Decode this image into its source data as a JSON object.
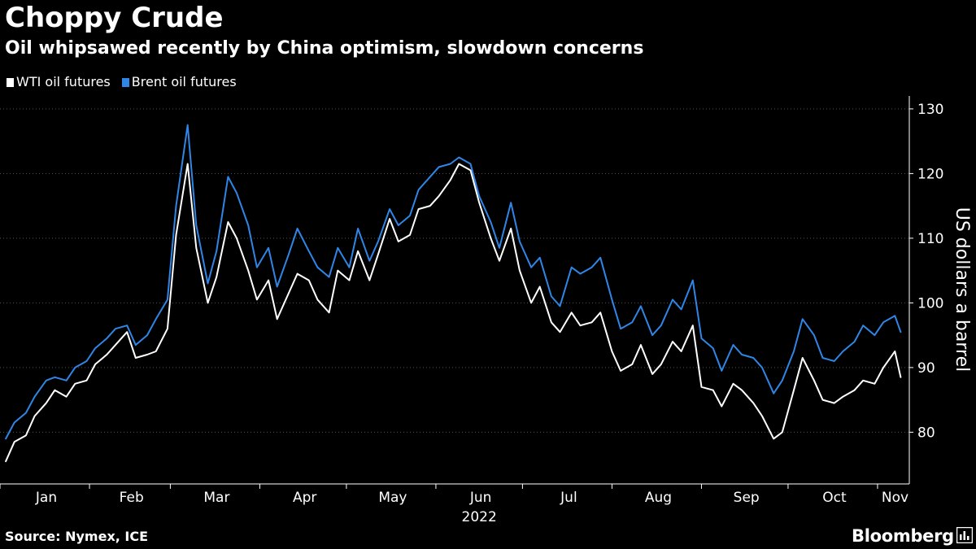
{
  "title": "Choppy Crude",
  "subtitle": "Oil whipsawed recently by China optimism, slowdown concerns",
  "legend": [
    {
      "label": "WTI oil futures",
      "color": "#ffffff"
    },
    {
      "label": "Brent oil futures",
      "color": "#2f86e6"
    }
  ],
  "source": "Source: Nymex, ICE",
  "brand": "Bloomberg",
  "brand_icon": "bloomberg-terminal-icon",
  "chart_data": {
    "type": "line",
    "xlabel": "2022",
    "ylabel": "US dollars a barrel",
    "ylim": [
      72,
      132
    ],
    "yticks": [
      80,
      90,
      100,
      110,
      120,
      130
    ],
    "xticks": [
      "Jan",
      "Feb",
      "Mar",
      "Apr",
      "May",
      "Jun",
      "Jul",
      "Aug",
      "Sep",
      "Oct",
      "Nov"
    ],
    "x": [
      "2022-01-03",
      "2022-01-06",
      "2022-01-10",
      "2022-01-13",
      "2022-01-17",
      "2022-01-20",
      "2022-01-24",
      "2022-01-27",
      "2022-01-31",
      "2022-02-03",
      "2022-02-07",
      "2022-02-10",
      "2022-02-14",
      "2022-02-17",
      "2022-02-21",
      "2022-02-24",
      "2022-02-28",
      "2022-03-03",
      "2022-03-07",
      "2022-03-10",
      "2022-03-14",
      "2022-03-17",
      "2022-03-21",
      "2022-03-24",
      "2022-03-28",
      "2022-03-31",
      "2022-04-04",
      "2022-04-07",
      "2022-04-11",
      "2022-04-14",
      "2022-04-18",
      "2022-04-21",
      "2022-04-25",
      "2022-04-28",
      "2022-05-02",
      "2022-05-05",
      "2022-05-09",
      "2022-05-12",
      "2022-05-16",
      "2022-05-19",
      "2022-05-23",
      "2022-05-26",
      "2022-05-30",
      "2022-06-02",
      "2022-06-06",
      "2022-06-09",
      "2022-06-13",
      "2022-06-16",
      "2022-06-20",
      "2022-06-23",
      "2022-06-27",
      "2022-06-30",
      "2022-07-04",
      "2022-07-07",
      "2022-07-11",
      "2022-07-14",
      "2022-07-18",
      "2022-07-21",
      "2022-07-25",
      "2022-07-28",
      "2022-08-01",
      "2022-08-04",
      "2022-08-08",
      "2022-08-11",
      "2022-08-15",
      "2022-08-18",
      "2022-08-22",
      "2022-08-25",
      "2022-08-29",
      "2022-09-01",
      "2022-09-05",
      "2022-09-08",
      "2022-09-12",
      "2022-09-15",
      "2022-09-19",
      "2022-09-22",
      "2022-09-26",
      "2022-09-29",
      "2022-10-03",
      "2022-10-06",
      "2022-10-10",
      "2022-10-13",
      "2022-10-17",
      "2022-10-20",
      "2022-10-24",
      "2022-10-27",
      "2022-10-31",
      "2022-11-03",
      "2022-11-07",
      "2022-11-09"
    ],
    "series": [
      {
        "name": "WTI oil futures",
        "color": "#ffffff",
        "values": [
          75.5,
          78.5,
          79.5,
          82.5,
          84.5,
          86.5,
          85.5,
          87.5,
          88.0,
          90.5,
          92.0,
          93.5,
          95.5,
          91.5,
          92.0,
          92.5,
          96.0,
          110.5,
          121.5,
          108.5,
          100.0,
          104.0,
          112.5,
          110.0,
          105.0,
          100.5,
          103.5,
          97.5,
          101.5,
          104.5,
          103.5,
          100.5,
          98.5,
          105.0,
          103.5,
          108.0,
          103.5,
          107.5,
          113.0,
          109.5,
          110.5,
          114.5,
          115.0,
          116.5,
          119.0,
          121.5,
          120.5,
          115.5,
          110.0,
          106.5,
          111.5,
          105.0,
          100.0,
          102.5,
          97.0,
          95.5,
          98.5,
          96.5,
          97.0,
          98.5,
          92.5,
          89.5,
          90.5,
          93.5,
          89.0,
          90.5,
          94.0,
          92.5,
          96.5,
          87.0,
          86.5,
          84.0,
          87.5,
          86.5,
          84.5,
          82.5,
          79.0,
          80.0,
          86.5,
          91.5,
          88.0,
          85.0,
          84.5,
          85.5,
          86.5,
          88.0,
          87.5,
          90.0,
          92.5,
          88.5
        ]
      },
      {
        "name": "Brent oil futures",
        "color": "#2f86e6",
        "values": [
          79.0,
          81.5,
          83.0,
          85.5,
          88.0,
          88.5,
          88.0,
          90.0,
          91.0,
          93.0,
          94.5,
          96.0,
          96.5,
          93.5,
          95.0,
          97.5,
          100.5,
          115.0,
          127.5,
          112.0,
          103.0,
          108.0,
          119.5,
          117.0,
          112.0,
          105.5,
          108.5,
          102.5,
          107.5,
          111.5,
          108.0,
          105.5,
          104.0,
          108.5,
          105.5,
          111.5,
          106.5,
          109.5,
          114.5,
          112.0,
          113.5,
          117.5,
          119.5,
          121.0,
          121.5,
          122.5,
          121.5,
          116.5,
          112.5,
          108.5,
          115.5,
          109.5,
          105.5,
          107.0,
          101.0,
          99.5,
          105.5,
          104.5,
          105.5,
          107.0,
          100.5,
          96.0,
          97.0,
          99.5,
          95.0,
          96.5,
          100.5,
          99.0,
          103.5,
          94.5,
          93.0,
          89.5,
          93.5,
          92.0,
          91.5,
          90.0,
          86.0,
          88.0,
          92.5,
          97.5,
          95.0,
          91.5,
          91.0,
          92.5,
          94.0,
          96.5,
          95.0,
          97.0,
          98.0,
          95.5
        ]
      }
    ]
  }
}
